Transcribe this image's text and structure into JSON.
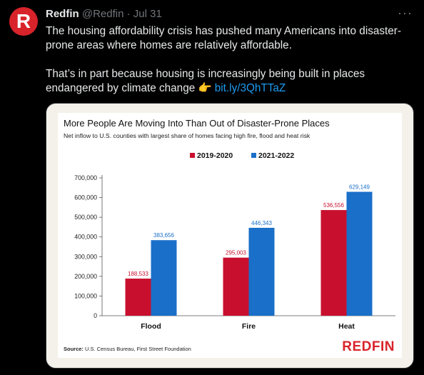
{
  "tweet": {
    "avatar_letter": "R",
    "display_name": "Redfin",
    "handle": "@Redfin",
    "separator": "·",
    "time": "Jul 31",
    "more_label": "···",
    "text_p1": "The housing affordability crisis has pushed many Americans into disaster-prone areas where homes are relatively affordable.",
    "text_p2_start": "That’s in part because housing is increasingly being built in places endangered by climate change ",
    "emoji": "👉",
    "link": "bit.ly/3QhTTaZ"
  },
  "colors": {
    "series_2019": "#c8102e",
    "series_2021": "#1a6fc9",
    "brand": "#d8232a"
  },
  "chart_data": {
    "type": "bar",
    "title": "More People Are Moving Into Than Out of Disaster-Prone Places",
    "subtitle": "Net inflow to U.S. counties with largest share of homes facing high fire, flood and heat risk",
    "categories": [
      "Flood",
      "Fire",
      "Heat"
    ],
    "series": [
      {
        "name": "2019-2020",
        "values": [
          188533,
          295003,
          536556
        ],
        "labels": [
          "188,533",
          "295,003",
          "536,556"
        ]
      },
      {
        "name": "2021-2022",
        "values": [
          383656,
          446343,
          629149
        ],
        "labels": [
          "383,656",
          "446,343",
          "629,149"
        ]
      }
    ],
    "ylim": [
      0,
      700000
    ],
    "yticks": [
      0,
      100000,
      200000,
      300000,
      400000,
      500000,
      600000,
      700000
    ],
    "ytick_labels": [
      "0",
      "100,000",
      "200,000",
      "300,000",
      "400,000",
      "500,000",
      "600,000",
      "700,000"
    ],
    "grid": false,
    "legend_position": "top-center",
    "source_label": "Source:",
    "source_text": "U.S. Census Bureau, First Street Foundation",
    "brand_text": "REDFIN"
  }
}
